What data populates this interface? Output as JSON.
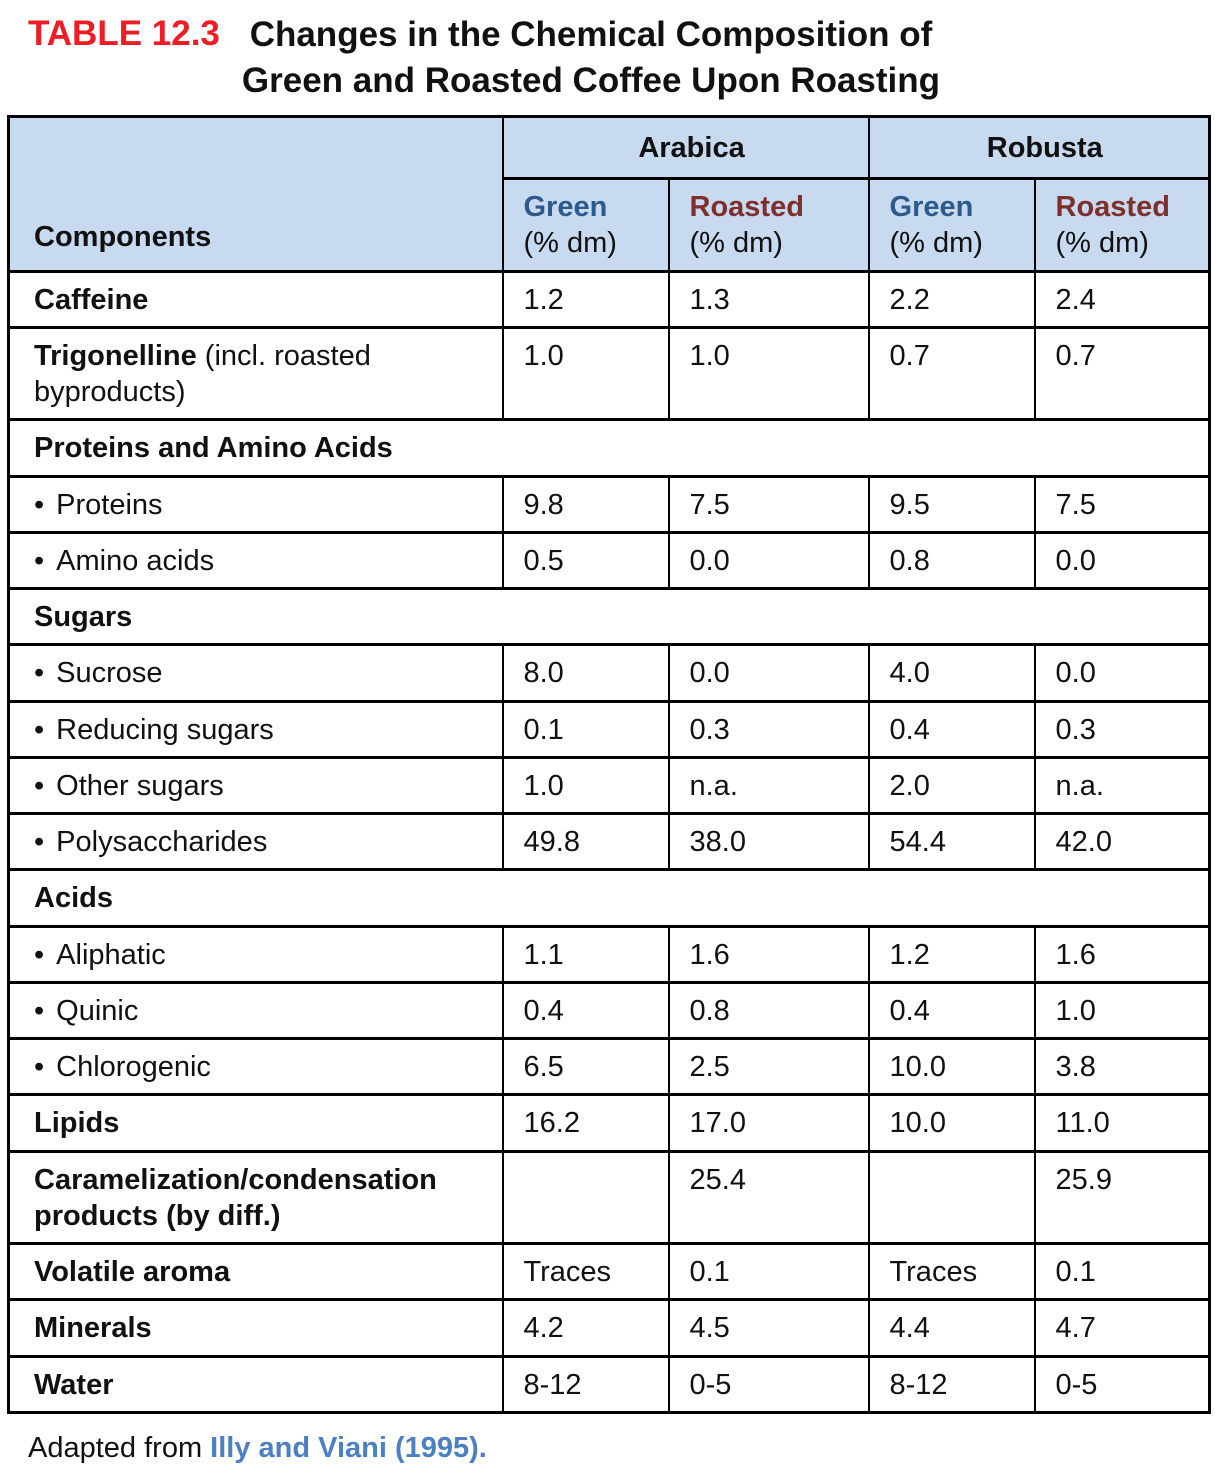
{
  "colors": {
    "header_bg": "#c8daf0",
    "green_label": "#2e5a8b",
    "roasted_label": "#7d2f2b",
    "title_label": "#ee1c24",
    "citation": "#4d80c2"
  },
  "title": {
    "label": "TABLE 12.3",
    "line1": "Changes in the Chemical Composition of",
    "line2": "Green and Roasted Coffee Upon Roasting"
  },
  "table": {
    "components_header": "Components",
    "bullet": "•",
    "groups": [
      {
        "label": "Arabica"
      },
      {
        "label": "Robusta"
      }
    ],
    "subcols": [
      {
        "name": "Green",
        "unit": "(% dm)",
        "tone": "green"
      },
      {
        "name": "Roasted",
        "unit": "(% dm)",
        "tone": "roasted"
      },
      {
        "name": "Green",
        "unit": "(% dm)",
        "tone": "green"
      },
      {
        "name": "Roasted",
        "unit": "(% dm)",
        "tone": "roasted"
      }
    ],
    "rows": [
      {
        "type": "data",
        "bold": true,
        "label": "Caffeine",
        "suffix": "",
        "values": [
          "1.2",
          "1.3",
          "2.2",
          "2.4"
        ]
      },
      {
        "type": "data",
        "bold": true,
        "tall": true,
        "label": "Trigonelline",
        "suffix": " (incl. roasted byproducts)",
        "values": [
          "1.0",
          "1.0",
          "0.7",
          "0.7"
        ]
      },
      {
        "type": "section",
        "label": "Proteins and Amino Acids"
      },
      {
        "type": "data",
        "bullet": true,
        "label": "Proteins",
        "values": [
          "9.8",
          "7.5",
          "9.5",
          "7.5"
        ]
      },
      {
        "type": "data",
        "bullet": true,
        "label": "Amino acids",
        "values": [
          "0.5",
          "0.0",
          "0.8",
          "0.0"
        ]
      },
      {
        "type": "section",
        "label": "Sugars"
      },
      {
        "type": "data",
        "bullet": true,
        "label": "Sucrose",
        "values": [
          "8.0",
          "0.0",
          "4.0",
          "0.0"
        ]
      },
      {
        "type": "data",
        "bullet": true,
        "label": "Reducing sugars",
        "values": [
          "0.1",
          "0.3",
          "0.4",
          "0.3"
        ]
      },
      {
        "type": "data",
        "bullet": true,
        "label": "Other sugars",
        "values": [
          "1.0",
          "n.a.",
          "2.0",
          "n.a."
        ]
      },
      {
        "type": "data",
        "bullet": true,
        "label": "Polysaccharides",
        "values": [
          "49.8",
          "38.0",
          "54.4",
          "42.0"
        ]
      },
      {
        "type": "section",
        "label": "Acids"
      },
      {
        "type": "data",
        "bullet": true,
        "label": "Aliphatic",
        "values": [
          "1.1",
          "1.6",
          "1.2",
          "1.6"
        ]
      },
      {
        "type": "data",
        "bullet": true,
        "label": "Quinic",
        "values": [
          "0.4",
          "0.8",
          "0.4",
          "1.0"
        ]
      },
      {
        "type": "data",
        "bullet": true,
        "label": "Chlorogenic",
        "values": [
          "6.5",
          "2.5",
          "10.0",
          "3.8"
        ]
      },
      {
        "type": "data",
        "bold": true,
        "label": "Lipids",
        "suffix": "",
        "values": [
          "16.2",
          "17.0",
          "10.0",
          "11.0"
        ]
      },
      {
        "type": "data",
        "bold": true,
        "tall": true,
        "label": "Caramelization/condensation products (by diff.)",
        "suffix": "",
        "values": [
          "",
          "25.4",
          "",
          "25.9"
        ]
      },
      {
        "type": "data",
        "bold": true,
        "label": "Volatile aroma",
        "suffix": "",
        "values": [
          "Traces",
          "0.1",
          "Traces",
          "0.1"
        ]
      },
      {
        "type": "data",
        "bold": true,
        "label": "Minerals",
        "suffix": "",
        "values": [
          "4.2",
          "4.5",
          "4.4",
          "4.7"
        ]
      },
      {
        "type": "data",
        "bold": true,
        "label": "Water",
        "suffix": "",
        "values": [
          "8-12",
          "0-5",
          "8-12",
          "0-5"
        ]
      }
    ]
  },
  "footer": {
    "prefix": "Adapted from ",
    "citation": "Illy and Viani (1995)."
  }
}
